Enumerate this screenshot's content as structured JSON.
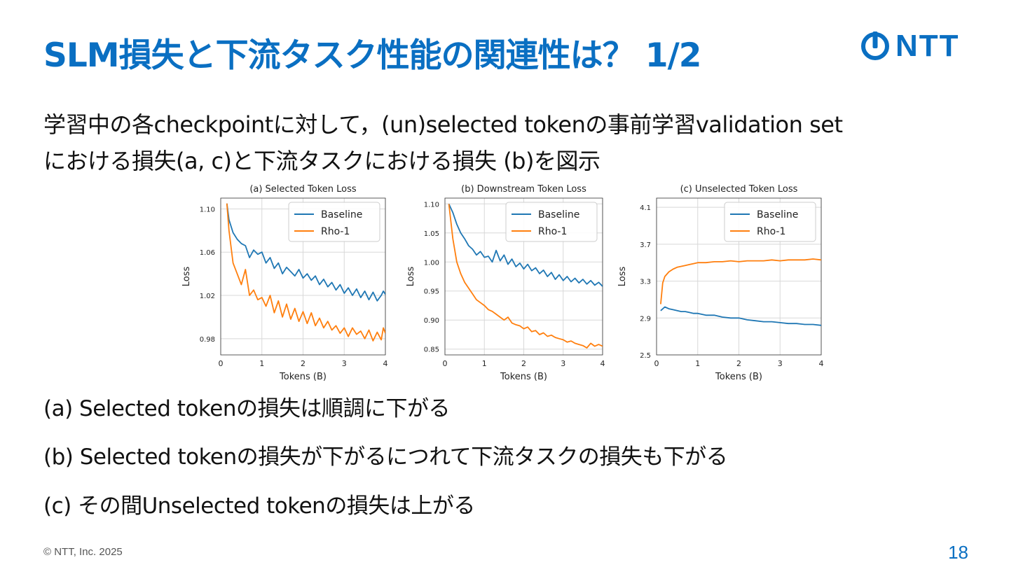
{
  "slide": {
    "title": "SLM損失と下流タスク性能の関連性は？ 1/2",
    "logo_text": "NTT",
    "intro_line1": "学習中の各checkpointに対して，(un)selected tokenの事前学習validation set",
    "intro_line2": "における損失(a, c)と下流タスクにおける損失 (b)を図示",
    "bullets": [
      "(a) Selected tokenの損失は順調に下がる",
      "(b) Selected tokenの損失が下がるにつれて下流タスクの損失も下がる",
      "(c) その間Unselected tokenの損失は上がる"
    ],
    "footer": "© NTT, Inc.  2025",
    "page_number": "18"
  },
  "colors": {
    "accent": "#0a6fc2",
    "baseline": "#1f77b4",
    "rho": "#ff7f0e"
  },
  "chart_data": [
    {
      "type": "line",
      "title": "(a) Selected Token Loss",
      "xlabel": "Tokens (B)",
      "ylabel": "Loss",
      "xlim": [
        0,
        4
      ],
      "ylim": [
        0.965,
        1.11
      ],
      "xticks": [
        "0",
        "1",
        "2",
        "3",
        "4"
      ],
      "xtick_values": [
        0,
        1,
        2,
        3,
        4
      ],
      "yticks": [
        "0.98",
        "1.02",
        "1.06",
        "1.10"
      ],
      "ytick_values": [
        0.98,
        1.02,
        1.06,
        1.1
      ],
      "grid": true,
      "legend_position": "top-right",
      "series": [
        {
          "name": "Baseline",
          "color": "#1f77b4",
          "x": [
            0.15,
            0.2,
            0.3,
            0.4,
            0.5,
            0.6,
            0.7,
            0.8,
            0.9,
            1.0,
            1.1,
            1.2,
            1.3,
            1.4,
            1.5,
            1.6,
            1.7,
            1.8,
            1.9,
            2.0,
            2.1,
            2.2,
            2.3,
            2.4,
            2.5,
            2.6,
            2.7,
            2.8,
            2.9,
            3.0,
            3.1,
            3.2,
            3.3,
            3.4,
            3.5,
            3.6,
            3.7,
            3.8,
            3.9,
            3.95,
            4.0
          ],
          "y": [
            1.105,
            1.09,
            1.078,
            1.072,
            1.068,
            1.066,
            1.055,
            1.062,
            1.058,
            1.06,
            1.05,
            1.055,
            1.045,
            1.05,
            1.04,
            1.046,
            1.042,
            1.038,
            1.044,
            1.036,
            1.04,
            1.034,
            1.038,
            1.03,
            1.035,
            1.028,
            1.032,
            1.025,
            1.03,
            1.022,
            1.027,
            1.02,
            1.026,
            1.018,
            1.024,
            1.016,
            1.023,
            1.015,
            1.02,
            1.024,
            1.021
          ]
        },
        {
          "name": "Rho-1",
          "color": "#ff7f0e",
          "x": [
            0.15,
            0.2,
            0.3,
            0.4,
            0.5,
            0.6,
            0.7,
            0.8,
            0.9,
            1.0,
            1.1,
            1.2,
            1.3,
            1.4,
            1.5,
            1.6,
            1.7,
            1.8,
            1.9,
            2.0,
            2.1,
            2.2,
            2.3,
            2.4,
            2.5,
            2.6,
            2.7,
            2.8,
            2.9,
            3.0,
            3.1,
            3.2,
            3.3,
            3.4,
            3.5,
            3.6,
            3.7,
            3.8,
            3.9,
            3.95,
            4.0
          ],
          "y": [
            1.105,
            1.08,
            1.05,
            1.04,
            1.03,
            1.044,
            1.02,
            1.025,
            1.016,
            1.018,
            1.01,
            1.02,
            1.004,
            1.015,
            1.0,
            1.012,
            0.998,
            1.008,
            0.996,
            1.005,
            0.994,
            1.004,
            0.992,
            0.999,
            0.99,
            0.996,
            0.988,
            0.992,
            0.985,
            0.99,
            0.982,
            0.99,
            0.984,
            0.987,
            0.98,
            0.988,
            0.978,
            0.986,
            0.979,
            0.99,
            0.985
          ]
        }
      ]
    },
    {
      "type": "line",
      "title": "(b) Downstream Token Loss",
      "xlabel": "Tokens (B)",
      "ylabel": "Loss",
      "xlim": [
        0,
        4
      ],
      "ylim": [
        0.84,
        1.11
      ],
      "xticks": [
        "0",
        "1",
        "2",
        "3",
        "4"
      ],
      "xtick_values": [
        0,
        1,
        2,
        3,
        4
      ],
      "yticks": [
        "0.85",
        "0.90",
        "0.95",
        "1.00",
        "1.05",
        "1.10"
      ],
      "ytick_values": [
        0.85,
        0.9,
        0.95,
        1.0,
        1.05,
        1.1
      ],
      "grid": true,
      "legend_position": "top-right",
      "series": [
        {
          "name": "Baseline",
          "color": "#1f77b4",
          "x": [
            0.1,
            0.2,
            0.3,
            0.4,
            0.5,
            0.6,
            0.7,
            0.8,
            0.9,
            1.0,
            1.1,
            1.2,
            1.3,
            1.4,
            1.5,
            1.6,
            1.7,
            1.8,
            1.9,
            2.0,
            2.1,
            2.2,
            2.3,
            2.4,
            2.5,
            2.6,
            2.7,
            2.8,
            2.9,
            3.0,
            3.1,
            3.2,
            3.3,
            3.4,
            3.5,
            3.6,
            3.7,
            3.8,
            3.9,
            4.0
          ],
          "y": [
            1.1,
            1.085,
            1.065,
            1.05,
            1.04,
            1.028,
            1.022,
            1.012,
            1.018,
            1.008,
            1.01,
            1.0,
            1.02,
            1.002,
            1.012,
            0.996,
            1.005,
            0.992,
            0.998,
            0.988,
            0.996,
            0.985,
            0.99,
            0.98,
            0.986,
            0.975,
            0.982,
            0.97,
            0.978,
            0.968,
            0.975,
            0.966,
            0.972,
            0.964,
            0.97,
            0.962,
            0.968,
            0.96,
            0.965,
            0.958
          ]
        },
        {
          "name": "Rho-1",
          "color": "#ff7f0e",
          "x": [
            0.1,
            0.2,
            0.3,
            0.4,
            0.5,
            0.6,
            0.7,
            0.8,
            0.9,
            1.0,
            1.1,
            1.2,
            1.3,
            1.4,
            1.5,
            1.6,
            1.7,
            1.8,
            1.9,
            2.0,
            2.1,
            2.2,
            2.3,
            2.4,
            2.5,
            2.6,
            2.7,
            2.8,
            2.9,
            3.0,
            3.1,
            3.2,
            3.3,
            3.4,
            3.5,
            3.6,
            3.7,
            3.8,
            3.9,
            4.0
          ],
          "y": [
            1.1,
            1.04,
            1.0,
            0.98,
            0.965,
            0.955,
            0.945,
            0.935,
            0.93,
            0.925,
            0.918,
            0.915,
            0.91,
            0.905,
            0.9,
            0.905,
            0.895,
            0.892,
            0.89,
            0.885,
            0.888,
            0.88,
            0.882,
            0.875,
            0.878,
            0.872,
            0.874,
            0.87,
            0.868,
            0.866,
            0.862,
            0.864,
            0.86,
            0.858,
            0.856,
            0.852,
            0.86,
            0.855,
            0.858,
            0.855
          ]
        }
      ]
    },
    {
      "type": "line",
      "title": "(c) Unselected Token Loss",
      "xlabel": "Tokens (B)",
      "ylabel": "Loss",
      "xlim": [
        0,
        4
      ],
      "ylim": [
        2.5,
        4.2
      ],
      "xticks": [
        "0",
        "1",
        "2",
        "3",
        "4"
      ],
      "xtick_values": [
        0,
        1,
        2,
        3,
        4
      ],
      "yticks": [
        "2.5",
        "2.9",
        "3.3",
        "3.7",
        "4.1"
      ],
      "ytick_values": [
        2.5,
        2.9,
        3.3,
        3.7,
        4.1
      ],
      "grid": true,
      "legend_position": "top-right",
      "series": [
        {
          "name": "Baseline",
          "color": "#1f77b4",
          "x": [
            0.1,
            0.2,
            0.3,
            0.4,
            0.5,
            0.6,
            0.7,
            0.8,
            0.9,
            1.0,
            1.2,
            1.4,
            1.6,
            1.8,
            2.0,
            2.2,
            2.4,
            2.6,
            2.8,
            3.0,
            3.2,
            3.4,
            3.6,
            3.8,
            4.0
          ],
          "y": [
            2.98,
            3.02,
            3.0,
            2.99,
            2.98,
            2.97,
            2.97,
            2.96,
            2.95,
            2.95,
            2.93,
            2.93,
            2.91,
            2.9,
            2.9,
            2.88,
            2.87,
            2.86,
            2.86,
            2.85,
            2.84,
            2.84,
            2.83,
            2.83,
            2.82
          ]
        },
        {
          "name": "Rho-1",
          "color": "#ff7f0e",
          "x": [
            0.1,
            0.15,
            0.2,
            0.3,
            0.4,
            0.5,
            0.6,
            0.7,
            0.8,
            0.9,
            1.0,
            1.2,
            1.4,
            1.6,
            1.8,
            2.0,
            2.2,
            2.4,
            2.6,
            2.8,
            3.0,
            3.2,
            3.4,
            3.6,
            3.8,
            4.0
          ],
          "y": [
            3.05,
            3.28,
            3.35,
            3.4,
            3.43,
            3.45,
            3.46,
            3.47,
            3.48,
            3.49,
            3.5,
            3.5,
            3.51,
            3.51,
            3.52,
            3.51,
            3.52,
            3.52,
            3.52,
            3.53,
            3.52,
            3.53,
            3.53,
            3.53,
            3.54,
            3.53
          ]
        }
      ]
    }
  ]
}
